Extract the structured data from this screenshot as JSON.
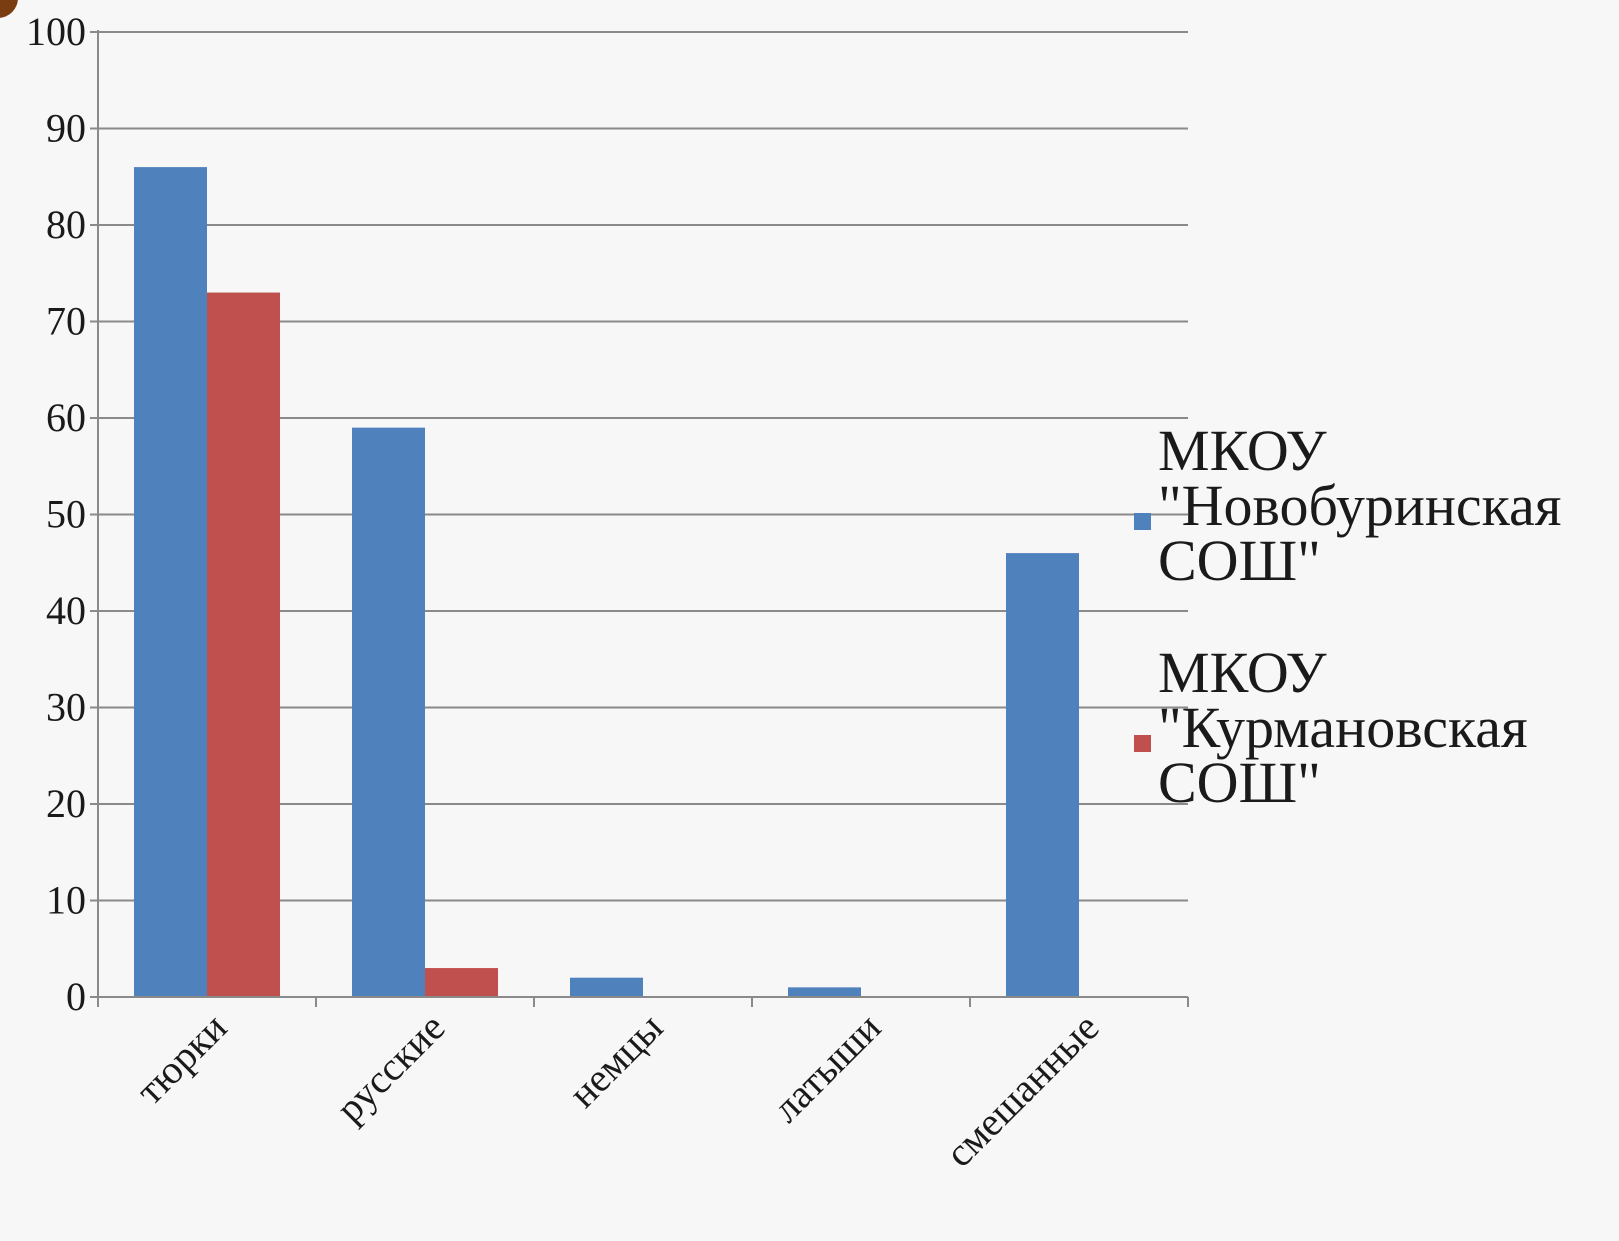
{
  "chart_data": {
    "type": "bar",
    "title": "",
    "xlabel": "",
    "ylabel": "",
    "categories": [
      "тюрки",
      "русские",
      "немцы",
      "латыши",
      "смешанные"
    ],
    "series": [
      {
        "name": "МКОУ \"Новобуринская СОШ\"",
        "name_lines": [
          "МКОУ",
          "\"Новобуринская",
          "СОШ\""
        ],
        "color": "#4f81bd",
        "values": [
          86,
          59,
          2,
          1,
          46
        ]
      },
      {
        "name": "МКОУ \"Курмановская СОШ\"",
        "name_lines": [
          "МКОУ",
          "\"Курмановская",
          "СОШ\""
        ],
        "color": "#c0504d",
        "values": [
          73,
          3,
          0,
          0,
          0
        ]
      }
    ],
    "ylim": [
      0,
      100
    ],
    "yticks": [
      0,
      10,
      20,
      30,
      40,
      50,
      60,
      70,
      80,
      90,
      100
    ],
    "grid": true,
    "legend": "right"
  }
}
